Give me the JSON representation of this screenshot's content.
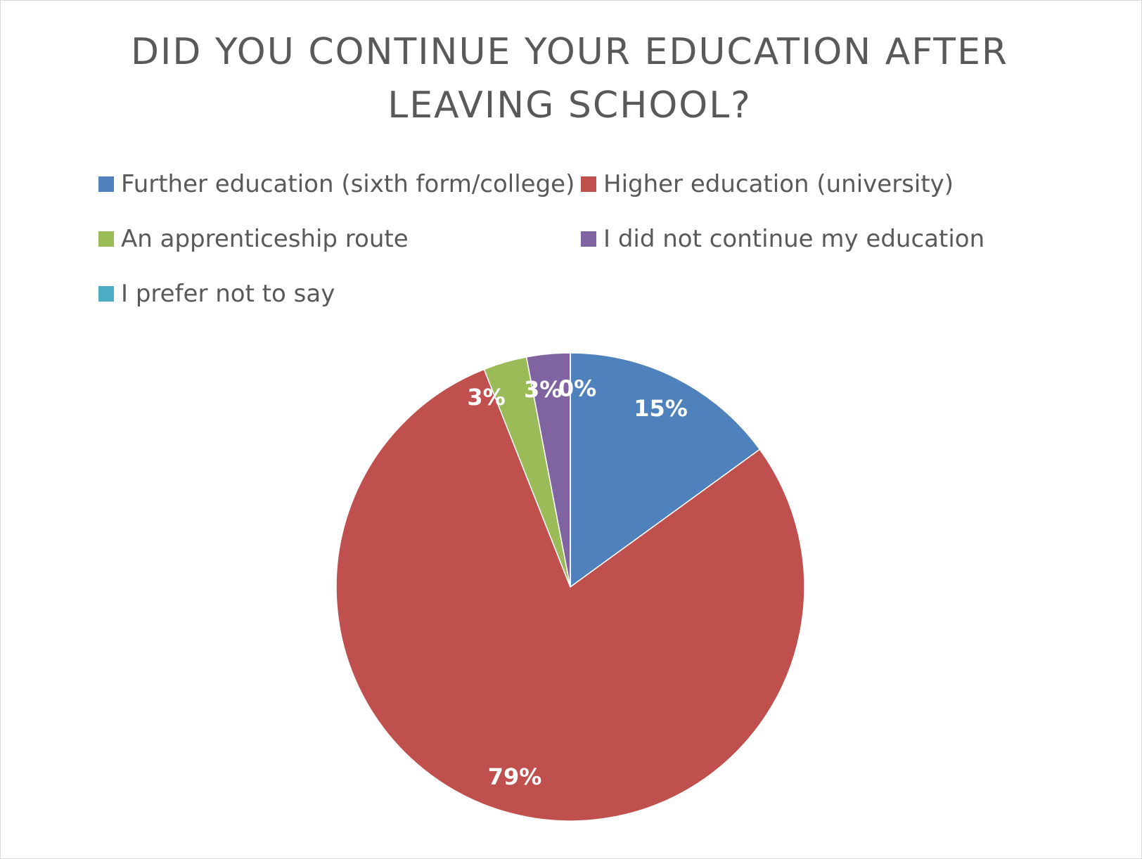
{
  "chart_data": {
    "type": "pie",
    "title": "DID YOU CONTINUE YOUR EDUCATION AFTER LEAVING SCHOOL?",
    "categories": [
      "Further education (sixth form/college)",
      "Higher education (university)",
      "An apprenticeship route",
      "I did not continue my education",
      "I prefer not to say"
    ],
    "values": [
      15,
      79,
      3,
      3,
      0
    ],
    "value_labels": [
      "15%",
      "79%",
      "3%",
      "3%",
      "0%"
    ],
    "colors": [
      "#4f81bd",
      "#c0504d",
      "#9bbb59",
      "#8064a2",
      "#4bacc6"
    ],
    "legend": "top"
  }
}
